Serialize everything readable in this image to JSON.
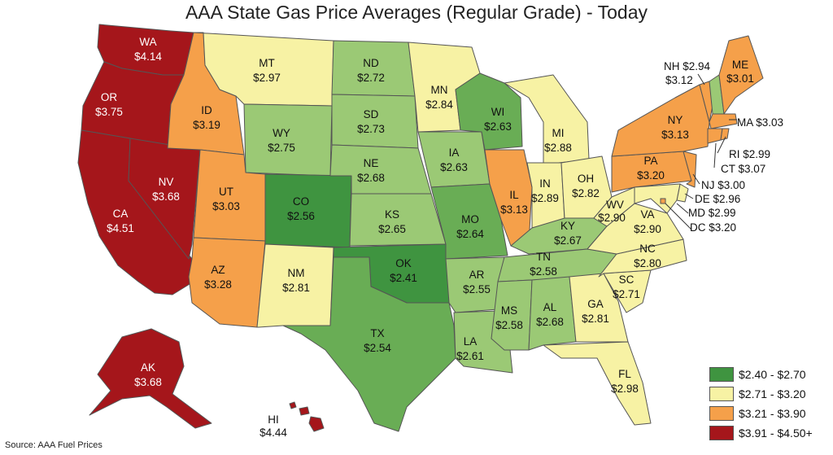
{
  "title": "AAA State Gas Price Averages (Regular Grade) - Today",
  "source": "Source: AAA Fuel Prices",
  "colors": {
    "tier1": "#3f9440",
    "tier1b": "#69ad55",
    "tier1c": "#9bc975",
    "tier2": "#f7f2a4",
    "tier3": "#f5a04a",
    "tier4": "#a5161b",
    "border": "#555555"
  },
  "legend": [
    {
      "label": "$2.40 - $2.70",
      "color": "#3f9440"
    },
    {
      "label": "$2.71 - $3.20",
      "color": "#f7f2a4"
    },
    {
      "label": "$3.21 - $3.90",
      "color": "#f5a04a"
    },
    {
      "label": "$3.91 - $4.50+",
      "color": "#a5161b"
    }
  ],
  "states": {
    "WA": {
      "abbr": "WA",
      "price": "$4.14"
    },
    "OR": {
      "abbr": "OR",
      "price": "$3.75"
    },
    "CA": {
      "abbr": "CA",
      "price": "$4.51"
    },
    "NV": {
      "abbr": "NV",
      "price": "$3.68"
    },
    "ID": {
      "abbr": "ID",
      "price": "$3.19"
    },
    "MT": {
      "abbr": "MT",
      "price": "$2.97"
    },
    "WY": {
      "abbr": "WY",
      "price": "$2.75"
    },
    "UT": {
      "abbr": "UT",
      "price": "$3.03"
    },
    "AZ": {
      "abbr": "AZ",
      "price": "$3.28"
    },
    "CO": {
      "abbr": "CO",
      "price": "$2.56"
    },
    "NM": {
      "abbr": "NM",
      "price": "$2.81"
    },
    "ND": {
      "abbr": "ND",
      "price": "$2.72"
    },
    "SD": {
      "abbr": "SD",
      "price": "$2.73"
    },
    "NE": {
      "abbr": "NE",
      "price": "$2.68"
    },
    "KS": {
      "abbr": "KS",
      "price": "$2.65"
    },
    "OK": {
      "abbr": "OK",
      "price": "$2.41"
    },
    "TX": {
      "abbr": "TX",
      "price": "$2.54"
    },
    "MN": {
      "abbr": "MN",
      "price": "$2.84"
    },
    "IA": {
      "abbr": "IA",
      "price": "$2.63"
    },
    "MO": {
      "abbr": "MO",
      "price": "$2.64"
    },
    "AR": {
      "abbr": "AR",
      "price": "$2.55"
    },
    "LA": {
      "abbr": "LA",
      "price": "$2.61"
    },
    "WI": {
      "abbr": "WI",
      "price": "$2.63"
    },
    "IL": {
      "abbr": "IL",
      "price": "$3.13"
    },
    "MI": {
      "abbr": "MI",
      "price": "$2.88"
    },
    "IN": {
      "abbr": "IN",
      "price": "$2.89"
    },
    "OH": {
      "abbr": "OH",
      "price": "$2.82"
    },
    "KY": {
      "abbr": "KY",
      "price": "$2.67"
    },
    "TN": {
      "abbr": "TN",
      "price": "$2.58"
    },
    "MS": {
      "abbr": "MS",
      "price": "$2.58"
    },
    "AL": {
      "abbr": "AL",
      "price": "$2.68"
    },
    "GA": {
      "abbr": "GA",
      "price": "$2.81"
    },
    "FL": {
      "abbr": "FL",
      "price": "$2.98"
    },
    "SC": {
      "abbr": "SC",
      "price": "$2.71"
    },
    "NC": {
      "abbr": "NC",
      "price": "$2.80"
    },
    "VA": {
      "abbr": "VA",
      "price": "$2.90"
    },
    "WV": {
      "abbr": "WV",
      "price": "$2.90"
    },
    "PA": {
      "abbr": "PA",
      "price": "$3.20"
    },
    "NY": {
      "abbr": "NY",
      "price": "$3.13"
    },
    "ME": {
      "abbr": "ME",
      "price": "$3.01"
    },
    "AK": {
      "abbr": "AK",
      "price": "$3.68"
    },
    "HI": {
      "abbr": "HI",
      "price": "$4.44"
    }
  },
  "callouts": {
    "NH": "NH $2.94",
    "VT": "$3.12",
    "MA": "MA $3.03",
    "RI": "RI $2.99",
    "CT": "CT $3.07",
    "NJ": "NJ $3.00",
    "DE": "DE $2.96",
    "MD": "MD $2.99",
    "DC": "DC $3.20"
  }
}
